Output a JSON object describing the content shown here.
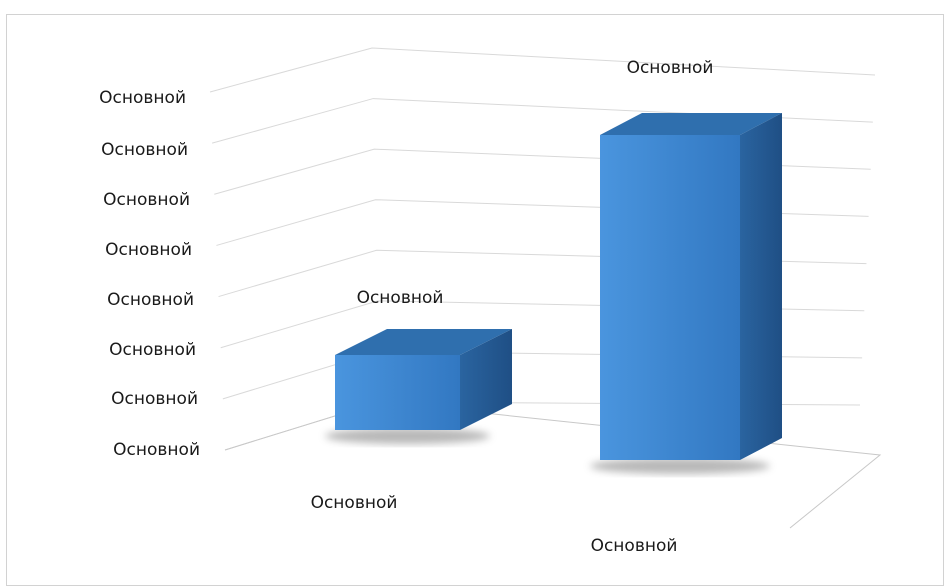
{
  "chart_data": {
    "type": "bar",
    "style": "3d-column",
    "categories": [
      "Основной",
      "Основной"
    ],
    "values": [
      1.5,
      6.5
    ],
    "data_labels": [
      "Основной",
      "Основной"
    ],
    "y_tick_labels": [
      "Основной",
      "Основной",
      "Основной",
      "Основной",
      "Основной",
      "Основной",
      "Основной",
      "Основной"
    ],
    "ylim": [
      0,
      7
    ],
    "grid": true,
    "legend": "none",
    "colors": {
      "bar_front": "#3a86d4",
      "bar_top": "#2f6fae",
      "bar_side": "#22578f",
      "gridline": "#d9d9d9",
      "axis": "#c8c8c8"
    }
  }
}
